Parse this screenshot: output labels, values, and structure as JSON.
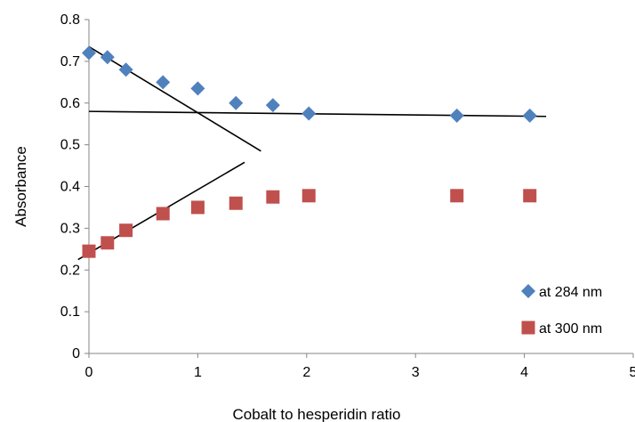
{
  "chart_data": {
    "type": "scatter",
    "title": "",
    "xlabel": "Cobalt to hesperidin ratio",
    "ylabel": "Absorbance",
    "xlim": [
      0,
      5
    ],
    "ylim": [
      0,
      0.8
    ],
    "xticks": [
      "0",
      "1",
      "2",
      "3",
      "4",
      "5"
    ],
    "yticks": [
      "0",
      "0.1",
      "0.2",
      "0.3",
      "0.4",
      "0.5",
      "0.6",
      "0.7",
      "0.8"
    ],
    "grid": false,
    "legend_position": "bottom-right",
    "series": [
      {
        "name": "at 284 nm",
        "marker": "diamond",
        "color": "#4F81BD",
        "points": [
          [
            0,
            0.72
          ],
          [
            0.17,
            0.71
          ],
          [
            0.34,
            0.68
          ],
          [
            0.68,
            0.65
          ],
          [
            1.0,
            0.635
          ],
          [
            1.35,
            0.6
          ],
          [
            1.69,
            0.595
          ],
          [
            2.02,
            0.575
          ],
          [
            3.38,
            0.57
          ],
          [
            4.05,
            0.57
          ]
        ]
      },
      {
        "name": "at 300 nm",
        "marker": "square",
        "color": "#C0504D",
        "points": [
          [
            0,
            0.245
          ],
          [
            0.17,
            0.265
          ],
          [
            0.34,
            0.295
          ],
          [
            0.68,
            0.335
          ],
          [
            1.0,
            0.35
          ],
          [
            1.35,
            0.36
          ],
          [
            1.69,
            0.375
          ],
          [
            2.02,
            0.378
          ],
          [
            3.38,
            0.378
          ],
          [
            4.05,
            0.378
          ]
        ]
      }
    ],
    "lines": [
      {
        "color": "#000000",
        "points": [
          [
            0,
            0.735
          ],
          [
            1.58,
            0.485
          ]
        ]
      },
      {
        "color": "#000000",
        "points": [
          [
            0,
            0.58
          ],
          [
            4.2,
            0.568
          ]
        ]
      },
      {
        "color": "#000000",
        "points": [
          [
            -0.1,
            0.225
          ],
          [
            1.43,
            0.458
          ]
        ]
      }
    ]
  }
}
